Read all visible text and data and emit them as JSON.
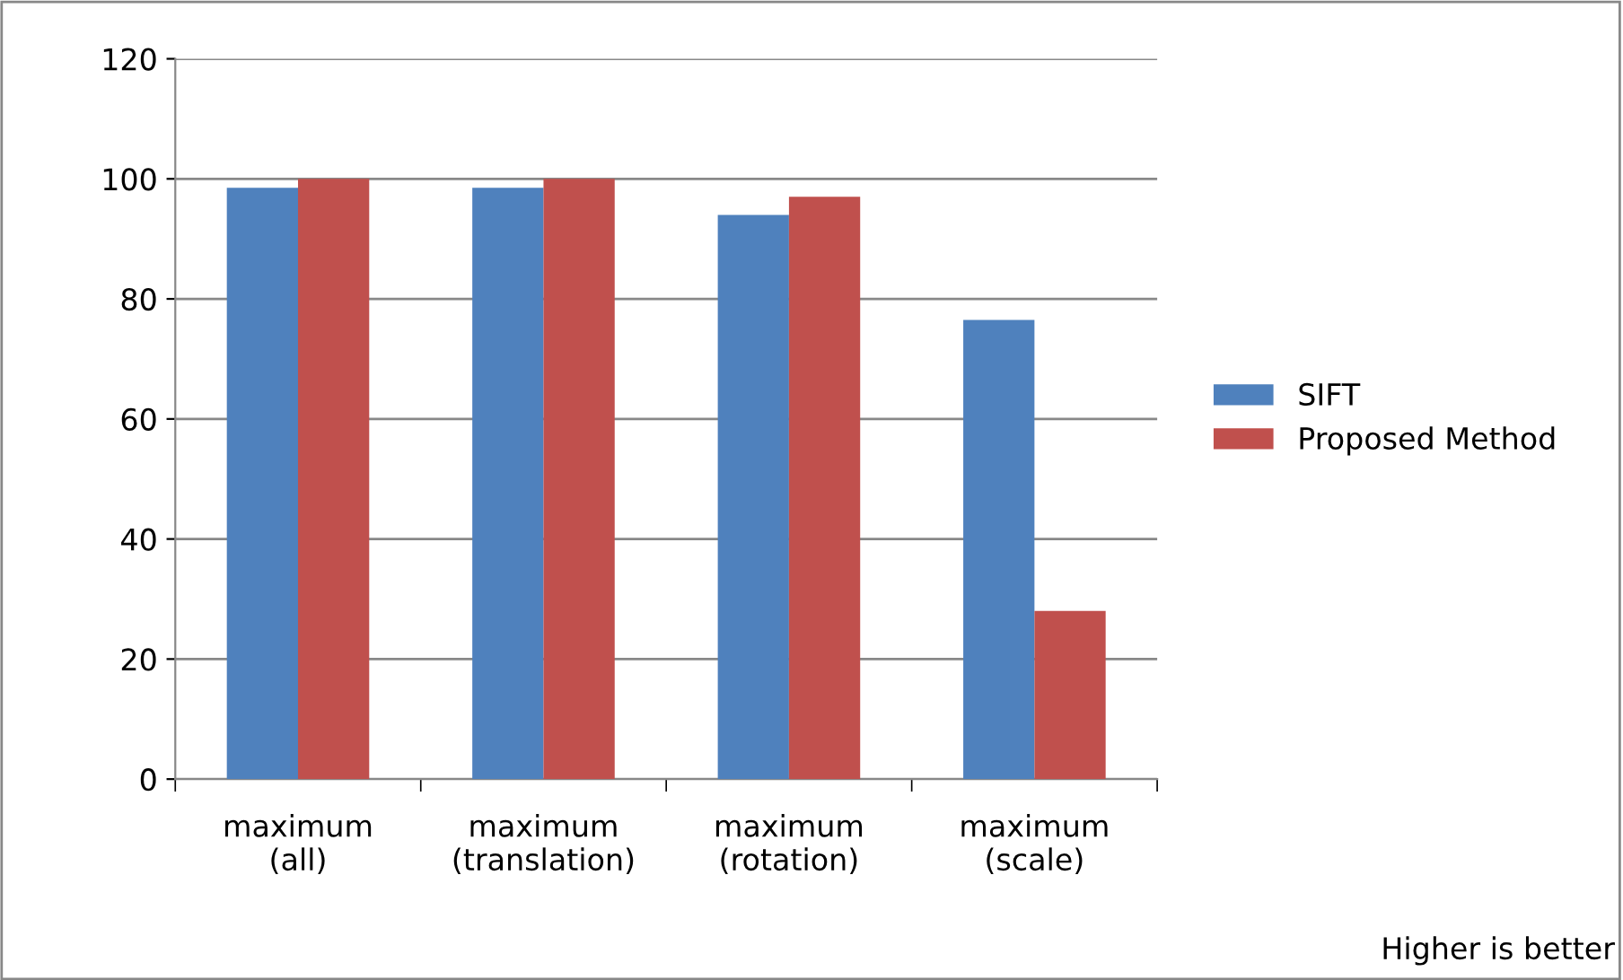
{
  "chart_data": {
    "type": "bar",
    "categories": [
      "maximum\n(all)",
      "maximum\n(translation)",
      "maximum\n(rotation)",
      "maximum\n(scale)"
    ],
    "series": [
      {
        "name": "SIFT",
        "color": "#4f81bd",
        "values": [
          98.5,
          98.5,
          94,
          76.5
        ]
      },
      {
        "name": "Proposed Method",
        "color": "#c0504d",
        "values": [
          100,
          100,
          97,
          28
        ]
      }
    ],
    "ylim": [
      0,
      120
    ],
    "yticks": [
      0,
      20,
      40,
      60,
      80,
      100,
      120
    ],
    "grid": "y",
    "legend": "right",
    "annotations": [
      "Higher is better"
    ]
  }
}
